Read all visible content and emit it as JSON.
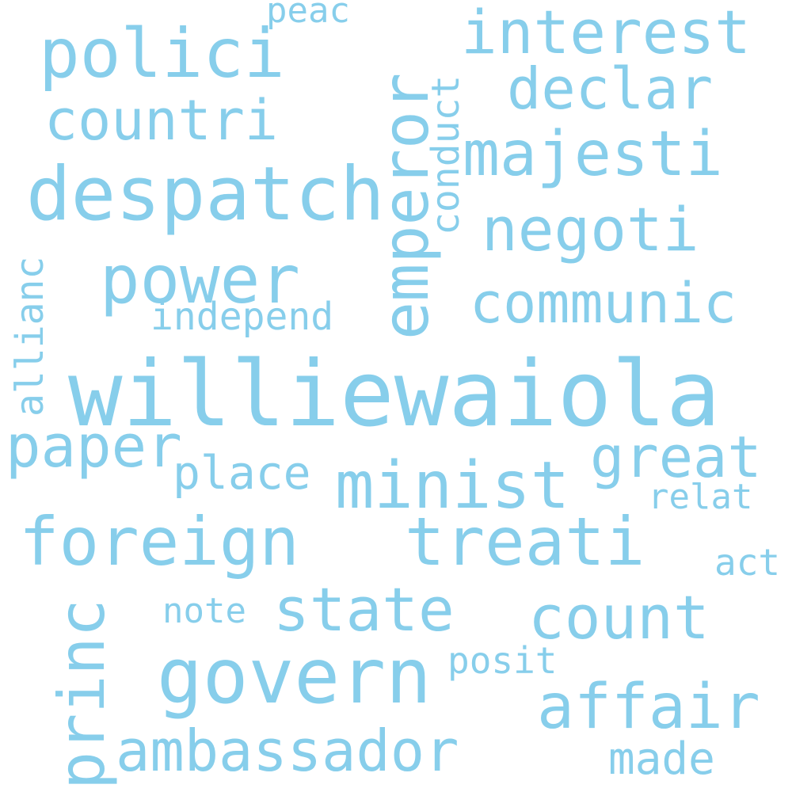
{
  "style": {
    "word_color": "#87CEEB",
    "background": "#ffffff"
  },
  "words": {
    "williewaiola": "williewaiola",
    "despatch": "despatch",
    "emperor": "emperor",
    "power": "power",
    "govern": "govern",
    "minist": "minist",
    "foreign": "foreign",
    "treati": "treati",
    "polici": "polici",
    "interest": "interest",
    "majesti": "majesti",
    "countri": "countri",
    "declar": "declar",
    "negoti": "negoti",
    "communic": "communic",
    "paper": "paper",
    "great": "great",
    "count": "count",
    "affair": "affair",
    "state": "state",
    "ambassador": "ambassador",
    "princ": "princ",
    "place": "place",
    "conduct": "conduct",
    "independ": "independ",
    "allianc": "allianc",
    "made": "made",
    "note": "note",
    "posit": "posit",
    "relat": "relat",
    "act": "act",
    "peac": "peac"
  }
}
